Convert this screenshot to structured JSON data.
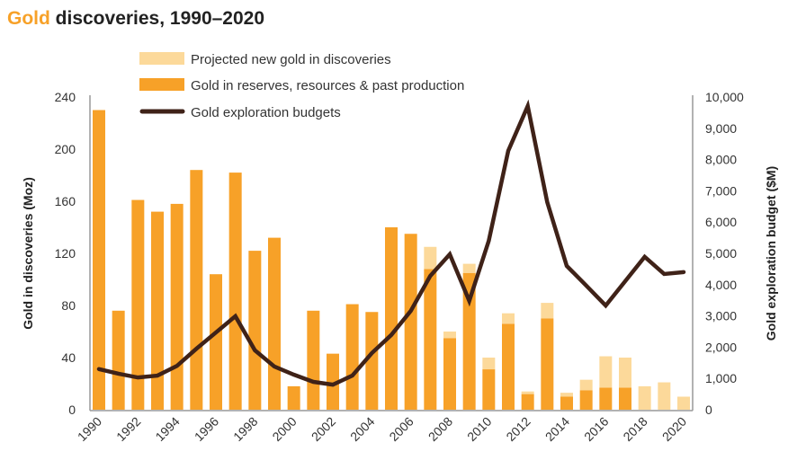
{
  "title": {
    "highlight": "Gold",
    "rest": " discoveries, 1990–2020"
  },
  "colors": {
    "title_highlight": "#F7A128",
    "reserves": "#F7A128",
    "projected": "#FCD99A",
    "budget": "#3F2218",
    "axis": "#999999"
  },
  "chart_data": {
    "type": "bar",
    "stacked": true,
    "x": [
      1990,
      1991,
      1992,
      1993,
      1994,
      1995,
      1996,
      1997,
      1998,
      1999,
      2000,
      2001,
      2002,
      2003,
      2004,
      2005,
      2006,
      2007,
      2008,
      2009,
      2010,
      2011,
      2012,
      2013,
      2014,
      2015,
      2016,
      2017,
      2018,
      2019,
      2020
    ],
    "x_tick_labels": [
      "1990",
      "1992",
      "1994",
      "1996",
      "1998",
      "2000",
      "2002",
      "2004",
      "2006",
      "2008",
      "2010",
      "2012",
      "2014",
      "2016",
      "2018",
      "2020"
    ],
    "ylabel": "Gold in discoveries (Moz)",
    "ylim": [
      0,
      240
    ],
    "y_ticks": [
      "0",
      "40",
      "80",
      "120",
      "160",
      "200",
      "240"
    ],
    "y2label": "Gold exploration budget ($M)",
    "y2lim": [
      0,
      10000
    ],
    "y2_ticks": [
      "0",
      "1,000",
      "2,000",
      "3,000",
      "4,000",
      "5,000",
      "6,000",
      "7,000",
      "8,000",
      "9,000",
      "10,000"
    ],
    "grid": false,
    "legend_placement": "top",
    "series": [
      {
        "name": "Gold in reserves, resources & past production",
        "axis": "left",
        "kind": "bar",
        "values": [
          230,
          76,
          161,
          152,
          158,
          184,
          104,
          182,
          122,
          132,
          18,
          76,
          43,
          81,
          75,
          140,
          135,
          108,
          55,
          105,
          31,
          66,
          12,
          70,
          10,
          15,
          17,
          17,
          0,
          0,
          0
        ]
      },
      {
        "name": "Projected new gold in discoveries",
        "axis": "left",
        "kind": "bar",
        "values": [
          0,
          0,
          0,
          0,
          0,
          0,
          0,
          0,
          0,
          0,
          0,
          0,
          0,
          0,
          0,
          0,
          0,
          17,
          5,
          7,
          9,
          8,
          2,
          12,
          3,
          8,
          24,
          23,
          18,
          21,
          10
        ]
      },
      {
        "name": "Gold exploration budgets",
        "axis": "right",
        "kind": "line",
        "values": [
          1300,
          1150,
          1030,
          1090,
          1400,
          1950,
          2470,
          2990,
          1900,
          1380,
          1120,
          890,
          800,
          1090,
          1810,
          2390,
          3160,
          4280,
          4970,
          3480,
          5400,
          8280,
          9710,
          6640,
          4600,
          3970,
          3330,
          4110,
          4890,
          4340,
          4400
        ]
      }
    ]
  }
}
